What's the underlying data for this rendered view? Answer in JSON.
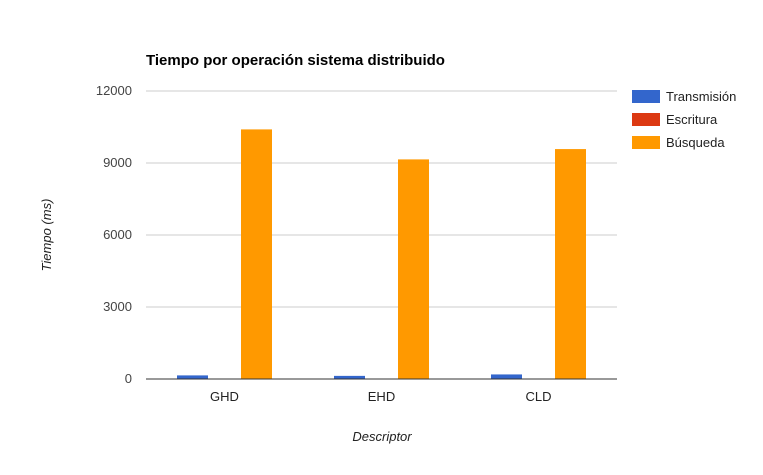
{
  "chart_data": {
    "type": "bar",
    "title": "Tiempo por operación sistema distribuido",
    "xlabel": "Descriptor",
    "ylabel": "Tiempo (ms)",
    "categories": [
      "GHD",
      "EHD",
      "CLD"
    ],
    "series": [
      {
        "name": "Transmisión",
        "color": "#3366cc",
        "values": [
          150,
          130,
          190
        ]
      },
      {
        "name": "Escritura",
        "color": "#dc3912",
        "values": [
          5,
          5,
          5
        ]
      },
      {
        "name": "Búsqueda",
        "color": "#ff9900",
        "values": [
          10400,
          9150,
          9580
        ]
      }
    ],
    "ylim": [
      0,
      12000
    ],
    "yticks": [
      0,
      3000,
      6000,
      9000,
      12000
    ],
    "ytick_labels": [
      "0",
      "3000",
      "6000",
      "9000",
      "12000"
    ],
    "grid": true,
    "legend_position": "right"
  }
}
